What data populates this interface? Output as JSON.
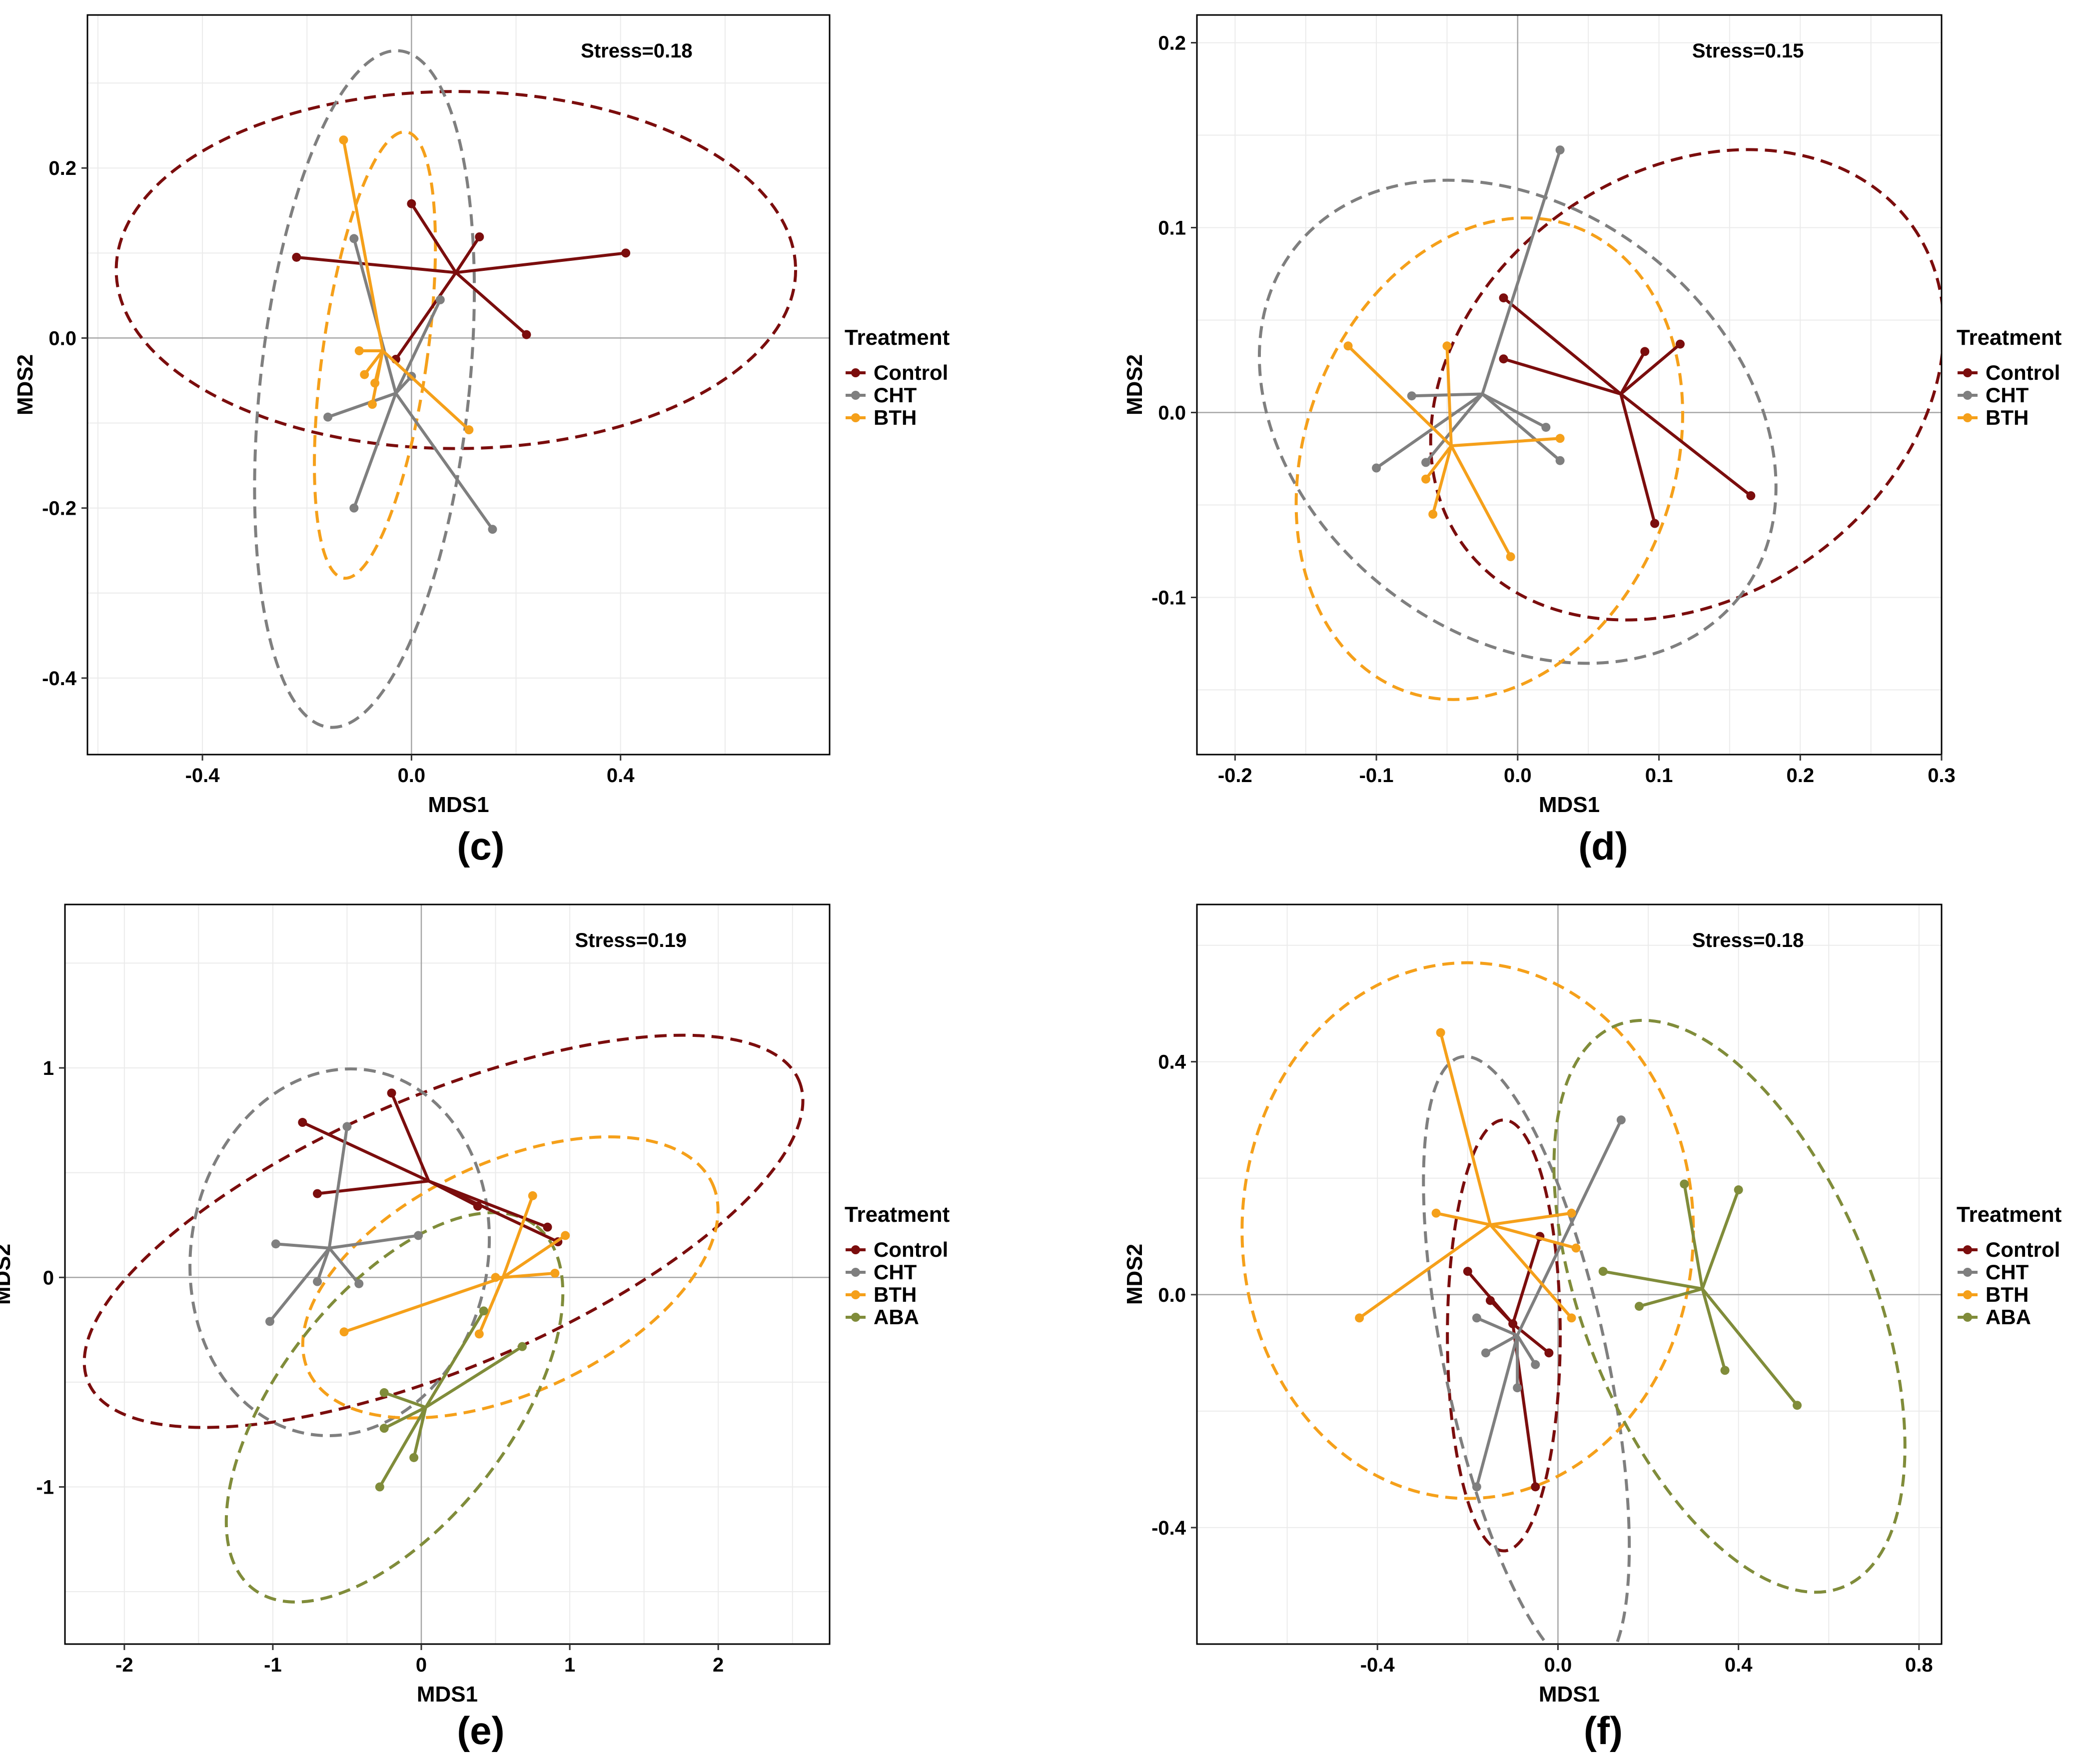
{
  "chart_data": [
    {
      "type": "scatter",
      "panel": "(c)",
      "stress": "Stress=0.18",
      "xlabel": "MDS1",
      "ylabel": "MDS2",
      "xlim": [
        -0.62,
        0.8
      ],
      "ylim": [
        -0.49,
        0.38
      ],
      "xticks": [
        -0.4,
        0.0,
        0.4
      ],
      "xtick_labels": [
        "-0.4",
        "0.0",
        "0.4"
      ],
      "yticks": [
        -0.4,
        -0.2,
        0.0,
        0.2
      ],
      "ytick_labels": [
        "-0.4",
        "-0.2",
        "0.0",
        "0.2"
      ],
      "grid": true,
      "legend": {
        "title": "Treatment",
        "position": "right"
      },
      "series": [
        {
          "name": "Control",
          "color": "#7b0d0d",
          "centroid": [
            0.085,
            0.077
          ],
          "points": [
            [
              -0.22,
              0.095
            ],
            [
              0.0,
              0.158
            ],
            [
              0.13,
              0.119
            ],
            [
              0.41,
              0.1
            ],
            [
              0.22,
              0.004
            ],
            [
              -0.03,
              -0.025
            ]
          ],
          "ellipse": {
            "cx": 0.085,
            "cy": 0.08,
            "rx": 0.65,
            "ry": 0.21,
            "angle": 0
          }
        },
        {
          "name": "CHT",
          "color": "#7f7f7f",
          "centroid": [
            -0.03,
            -0.065
          ],
          "points": [
            [
              -0.11,
              0.117
            ],
            [
              0.055,
              0.045
            ],
            [
              0.0,
              -0.045
            ],
            [
              -0.16,
              -0.093
            ],
            [
              -0.11,
              -0.2
            ],
            [
              0.155,
              -0.225
            ]
          ],
          "ellipse": {
            "cx": -0.09,
            "cy": -0.06,
            "rx": 0.2,
            "ry": 0.4,
            "angle": -6
          }
        },
        {
          "name": "BTH",
          "color": "#f5a01a",
          "centroid": [
            -0.055,
            -0.015
          ],
          "points": [
            [
              -0.13,
              0.233
            ],
            [
              -0.1,
              -0.015
            ],
            [
              -0.09,
              -0.043
            ],
            [
              -0.075,
              -0.078
            ],
            [
              -0.07,
              -0.053
            ],
            [
              0.11,
              -0.108
            ]
          ],
          "ellipse": {
            "cx": -0.07,
            "cy": -0.02,
            "rx": 0.1,
            "ry": 0.265,
            "angle": -8
          }
        }
      ]
    },
    {
      "type": "scatter",
      "panel": "(d)",
      "stress": "Stress=0.15",
      "xlabel": "MDS1",
      "ylabel": "MDS2",
      "xlim": [
        -0.227,
        0.3
      ],
      "ylim": [
        -0.185,
        0.215
      ],
      "xticks": [
        -0.2,
        -0.1,
        0.0,
        0.1,
        0.2,
        0.3
      ],
      "xtick_labels": [
        "-0.2",
        "-0.1",
        "0.0",
        "0.1",
        "0.2",
        "0.3"
      ],
      "yticks": [
        -0.1,
        0.0,
        0.1,
        0.2
      ],
      "ytick_labels": [
        "-0.1",
        "0.0",
        "0.1",
        "0.2"
      ],
      "grid": true,
      "legend": {
        "title": "Treatment",
        "position": "right"
      },
      "series": [
        {
          "name": "Control",
          "color": "#7b0d0d",
          "centroid": [
            0.073,
            0.01
          ],
          "points": [
            [
              -0.01,
              0.062
            ],
            [
              -0.01,
              0.029
            ],
            [
              0.09,
              0.033
            ],
            [
              0.115,
              0.037
            ],
            [
              0.165,
              -0.045
            ],
            [
              0.097,
              -0.06
            ]
          ],
          "ellipse": {
            "cx": 0.12,
            "cy": 0.015,
            "rx": 0.195,
            "ry": 0.115,
            "angle": 35
          }
        },
        {
          "name": "CHT",
          "color": "#7f7f7f",
          "centroid": [
            -0.025,
            0.01
          ],
          "points": [
            [
              0.03,
              0.142
            ],
            [
              -0.075,
              0.009
            ],
            [
              -0.1,
              -0.03
            ],
            [
              -0.065,
              -0.027
            ],
            [
              0.02,
              -0.008
            ],
            [
              0.03,
              -0.026
            ]
          ],
          "ellipse": {
            "cx": 0.0,
            "cy": -0.005,
            "rx": 0.2,
            "ry": 0.115,
            "angle": -38
          }
        },
        {
          "name": "BTH",
          "color": "#f5a01a",
          "centroid": [
            -0.047,
            -0.018
          ],
          "points": [
            [
              -0.12,
              0.036
            ],
            [
              -0.05,
              0.036
            ],
            [
              -0.065,
              -0.036
            ],
            [
              -0.06,
              -0.055
            ],
            [
              0.03,
              -0.014
            ],
            [
              -0.005,
              -0.078
            ]
          ],
          "ellipse": {
            "cx": -0.02,
            "cy": -0.025,
            "rx": 0.175,
            "ry": 0.1,
            "angle": 70
          }
        }
      ]
    },
    {
      "type": "scatter",
      "panel": "(e)",
      "stress": "Stress=0.19",
      "xlabel": "MDS1",
      "ylabel": "MDS2",
      "xlim": [
        -2.4,
        2.75
      ],
      "ylim": [
        -1.75,
        1.78
      ],
      "xticks": [
        -2,
        -1,
        0,
        1,
        2
      ],
      "xtick_labels": [
        "-2",
        "-1",
        "0",
        "1",
        "2"
      ],
      "yticks": [
        -1,
        0,
        1
      ],
      "ytick_labels": [
        "-1",
        "0",
        "1"
      ],
      "grid": true,
      "legend": {
        "title": "Treatment",
        "position": "right"
      },
      "series": [
        {
          "name": "Control",
          "color": "#7b0d0d",
          "centroid": [
            0.05,
            0.46
          ],
          "points": [
            [
              -0.8,
              0.74
            ],
            [
              -0.7,
              0.4
            ],
            [
              -0.2,
              0.88
            ],
            [
              0.38,
              0.34
            ],
            [
              0.85,
              0.24
            ],
            [
              0.92,
              0.17
            ]
          ],
          "ellipse": {
            "cx": 0.15,
            "cy": 0.22,
            "rx": 2.6,
            "ry": 0.65,
            "angle": 23
          }
        },
        {
          "name": "CHT",
          "color": "#7f7f7f",
          "centroid": [
            -0.62,
            0.14
          ],
          "points": [
            [
              -0.5,
              0.72
            ],
            [
              -0.98,
              0.16
            ],
            [
              -1.02,
              -0.21
            ],
            [
              -0.7,
              -0.02
            ],
            [
              -0.42,
              -0.03
            ],
            [
              -0.02,
              0.2
            ]
          ],
          "ellipse": {
            "cx": -0.55,
            "cy": 0.12,
            "rx": 1.0,
            "ry": 0.88,
            "angle": -10
          }
        },
        {
          "name": "BTH",
          "color": "#f5a01a",
          "centroid": [
            0.55,
            0.0
          ],
          "points": [
            [
              -0.52,
              -0.26
            ],
            [
              0.75,
              0.39
            ],
            [
              0.97,
              0.2
            ],
            [
              0.9,
              0.02
            ],
            [
              0.39,
              -0.27
            ],
            [
              0.5,
              0.0
            ]
          ],
          "ellipse": {
            "cx": 0.6,
            "cy": 0.0,
            "rx": 1.5,
            "ry": 0.55,
            "angle": 25
          }
        },
        {
          "name": "ABA",
          "color": "#808c3a",
          "centroid": [
            0.03,
            -0.62
          ],
          "points": [
            [
              -0.25,
              -0.55
            ],
            [
              -0.25,
              -0.72
            ],
            [
              0.68,
              -0.33
            ],
            [
              0.42,
              -0.16
            ],
            [
              -0.05,
              -0.86
            ],
            [
              -0.28,
              -1.0
            ]
          ],
          "ellipse": {
            "cx": -0.18,
            "cy": -0.62,
            "rx": 1.55,
            "ry": 0.55,
            "angle": 52
          }
        }
      ]
    },
    {
      "type": "scatter",
      "panel": "(f)",
      "stress": "Stress=0.18",
      "xlabel": "MDS1",
      "ylabel": "MDS2",
      "xlim": [
        -0.8,
        0.85
      ],
      "ylim": [
        -0.6,
        0.67
      ],
      "xticks": [
        -0.4,
        0.0,
        0.4,
        0.8
      ],
      "xtick_labels": [
        "-0.4",
        "0.0",
        "0.4",
        "0.8"
      ],
      "yticks": [
        -0.4,
        0.0,
        0.4
      ],
      "ytick_labels": [
        "-0.4",
        "0.0",
        "0.4"
      ],
      "grid": true,
      "legend": {
        "title": "Treatment",
        "position": "right"
      },
      "series": [
        {
          "name": "Control",
          "color": "#7b0d0d",
          "centroid": [
            -0.1,
            -0.05
          ],
          "points": [
            [
              -0.2,
              0.04
            ],
            [
              -0.15,
              -0.01
            ],
            [
              -0.04,
              0.1
            ],
            [
              -0.02,
              -0.1
            ],
            [
              -0.05,
              -0.33
            ],
            [
              -0.1,
              -0.05
            ]
          ],
          "ellipse": {
            "cx": -0.12,
            "cy": -0.07,
            "rx": 0.125,
            "ry": 0.37,
            "angle": 0
          }
        },
        {
          "name": "CHT",
          "color": "#7f7f7f",
          "centroid": [
            -0.09,
            -0.07
          ],
          "points": [
            [
              0.14,
              0.3
            ],
            [
              -0.18,
              -0.04
            ],
            [
              -0.16,
              -0.1
            ],
            [
              -0.09,
              -0.16
            ],
            [
              -0.05,
              -0.12
            ],
            [
              -0.18,
              -0.33
            ]
          ],
          "ellipse": {
            "cx": -0.07,
            "cy": -0.12,
            "rx": 0.18,
            "ry": 0.54,
            "angle": 12
          }
        },
        {
          "name": "BTH",
          "color": "#f5a01a",
          "centroid": [
            -0.15,
            0.12
          ],
          "points": [
            [
              -0.26,
              0.45
            ],
            [
              -0.27,
              0.14
            ],
            [
              -0.44,
              -0.04
            ],
            [
              0.03,
              0.14
            ],
            [
              0.04,
              0.08
            ],
            [
              0.03,
              -0.04
            ]
          ],
          "ellipse": {
            "cx": -0.2,
            "cy": 0.11,
            "rx": 0.5,
            "ry": 0.46,
            "angle": 0
          }
        },
        {
          "name": "ABA",
          "color": "#808c3a",
          "centroid": [
            0.32,
            0.01
          ],
          "points": [
            [
              0.1,
              0.04
            ],
            [
              0.18,
              -0.02
            ],
            [
              0.28,
              0.19
            ],
            [
              0.4,
              0.18
            ],
            [
              0.37,
              -0.13
            ],
            [
              0.53,
              -0.19
            ]
          ],
          "ellipse": {
            "cx": 0.38,
            "cy": -0.02,
            "rx": 0.32,
            "ry": 0.52,
            "angle": 22
          }
        }
      ]
    }
  ]
}
